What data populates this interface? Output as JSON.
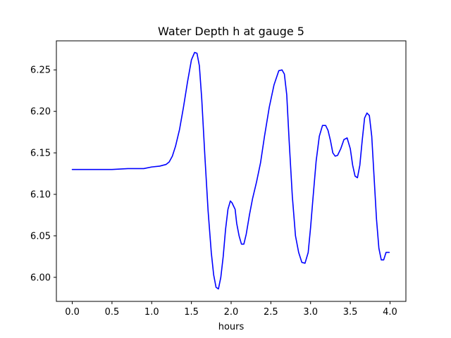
{
  "chart_data": {
    "type": "line",
    "title": "Water Depth h at gauge 5",
    "xlabel": "hours",
    "ylabel": "",
    "xlim": [
      -0.2,
      4.2
    ],
    "ylim": [
      5.971,
      6.285
    ],
    "grid": false,
    "x_ticks": [
      0.0,
      0.5,
      1.0,
      1.5,
      2.0,
      2.5,
      3.0,
      3.5,
      4.0
    ],
    "x_tick_labels": [
      "0.0",
      "0.5",
      "1.0",
      "1.5",
      "2.0",
      "2.5",
      "3.0",
      "3.5",
      "4.0"
    ],
    "y_ticks": [
      6.0,
      6.05,
      6.1,
      6.15,
      6.2,
      6.25
    ],
    "y_tick_labels": [
      "6.00",
      "6.05",
      "6.10",
      "6.15",
      "6.20",
      "6.25"
    ],
    "series": [
      {
        "color": "#0000ff",
        "x": [
          0.0,
          0.3,
          0.5,
          0.7,
          0.9,
          1.0,
          1.1,
          1.18,
          1.22,
          1.26,
          1.3,
          1.35,
          1.4,
          1.45,
          1.5,
          1.54,
          1.57,
          1.6,
          1.63,
          1.67,
          1.71,
          1.75,
          1.78,
          1.81,
          1.84,
          1.87,
          1.9,
          1.93,
          1.96,
          1.99,
          2.01,
          2.03,
          2.05,
          2.07,
          2.1,
          2.13,
          2.16,
          2.19,
          2.23,
          2.27,
          2.32,
          2.37,
          2.42,
          2.48,
          2.54,
          2.6,
          2.64,
          2.67,
          2.7,
          2.73,
          2.77,
          2.81,
          2.85,
          2.89,
          2.93,
          2.97,
          3.0,
          3.03,
          3.07,
          3.11,
          3.15,
          3.19,
          3.22,
          3.25,
          3.28,
          3.31,
          3.34,
          3.38,
          3.42,
          3.46,
          3.5,
          3.53,
          3.56,
          3.59,
          3.62,
          3.65,
          3.68,
          3.71,
          3.74,
          3.77,
          3.8,
          3.83,
          3.86,
          3.89,
          3.92,
          3.95,
          3.97,
          3.99
        ],
        "y": [
          6.13,
          6.13,
          6.13,
          6.131,
          6.131,
          6.133,
          6.134,
          6.136,
          6.139,
          6.146,
          6.158,
          6.178,
          6.205,
          6.235,
          6.262,
          6.271,
          6.27,
          6.255,
          6.215,
          6.145,
          6.08,
          6.03,
          6.003,
          5.988,
          5.986,
          6.0,
          6.025,
          6.058,
          6.082,
          6.092,
          6.09,
          6.086,
          6.082,
          6.065,
          6.05,
          6.04,
          6.04,
          6.052,
          6.075,
          6.095,
          6.115,
          6.138,
          6.17,
          6.205,
          6.232,
          6.249,
          6.25,
          6.245,
          6.22,
          6.165,
          6.098,
          6.05,
          6.03,
          6.018,
          6.017,
          6.03,
          6.06,
          6.095,
          6.14,
          6.17,
          6.183,
          6.183,
          6.177,
          6.165,
          6.15,
          6.146,
          6.147,
          6.155,
          6.166,
          6.168,
          6.155,
          6.135,
          6.122,
          6.12,
          6.135,
          6.165,
          6.192,
          6.198,
          6.195,
          6.17,
          6.12,
          6.07,
          6.035,
          6.021,
          6.021,
          6.03,
          6.03,
          6.03
        ]
      }
    ]
  }
}
